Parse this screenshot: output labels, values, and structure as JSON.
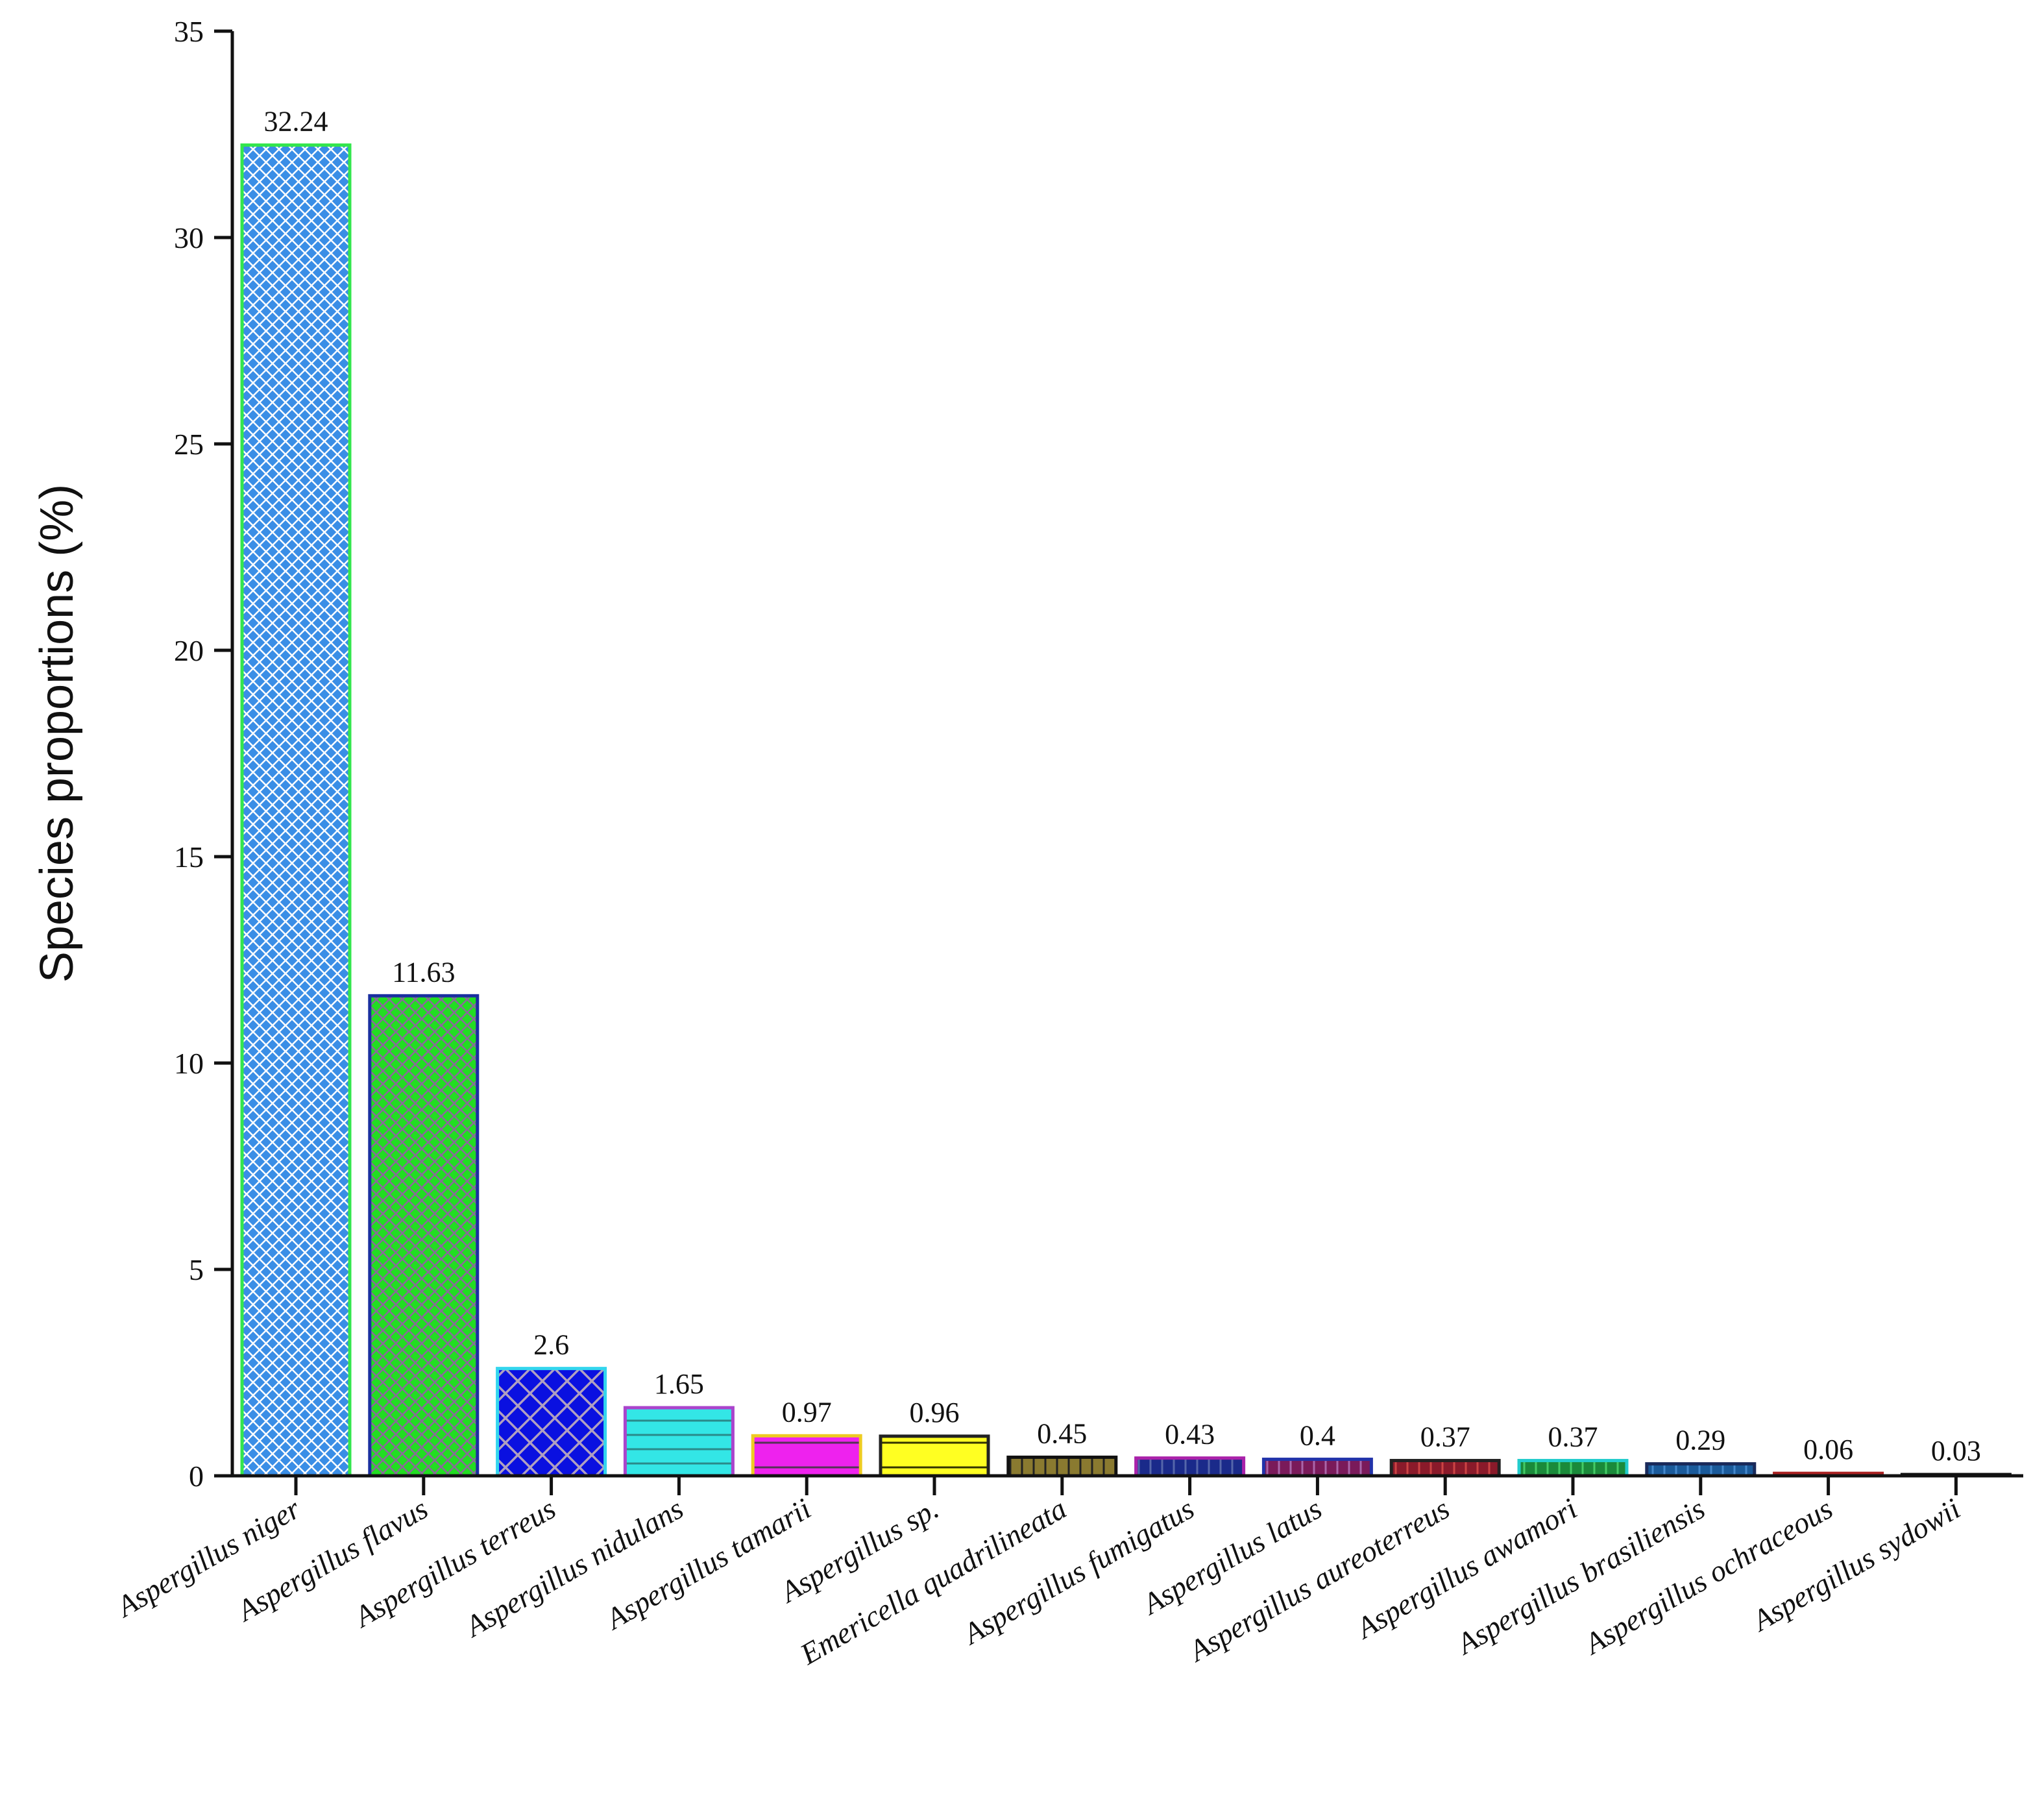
{
  "chart_data": {
    "type": "bar",
    "ylabel": "Species proportions (%)",
    "xlabel": "",
    "ylim": [
      0,
      35
    ],
    "yticks": [
      0,
      5,
      10,
      15,
      20,
      25,
      30,
      35
    ],
    "grid": false,
    "categories": [
      "Aspergillus niger",
      "Aspergillus flavus",
      "Aspergillus terreus",
      "Aspergillus nidulans",
      "Aspergillus tamarii",
      "Aspergillus sp.",
      "Emericella quadrilineata",
      "Aspergillus fumigatus",
      "Aspergillus latus",
      "Aspergillus aureoterreus",
      "Aspergillus awamori",
      "Aspergillus brasiliensis",
      "Aspergillus ochraceous",
      "Aspergillus sydowii"
    ],
    "values": [
      32.24,
      11.63,
      2.6,
      1.65,
      0.97,
      0.96,
      0.45,
      0.43,
      0.4,
      0.37,
      0.37,
      0.29,
      0.06,
      0.03
    ],
    "value_labels": [
      "32.24",
      "11.63",
      "2.6",
      "1.65",
      "0.97",
      "0.96",
      "0.45",
      "0.43",
      "0.4",
      "0.37",
      "0.37",
      "0.29",
      "0.06",
      "0.03"
    ],
    "bar_styles": [
      {
        "fill": "#3a8ee6",
        "stroke": "#33e64d",
        "pattern": "crosshatch",
        "pattern_color": "#ffffff"
      },
      {
        "fill": "#22dd22",
        "stroke": "#1a2fa0",
        "pattern": "crosshatch",
        "pattern_color": "#8a6a9a"
      },
      {
        "fill": "#0a10e0",
        "stroke": "#33d6ee",
        "pattern": "crosshatch-wide",
        "pattern_color": "#b0a0c0"
      },
      {
        "fill": "#33e6e6",
        "stroke": "#aa44cc",
        "pattern": "horizontal",
        "pattern_color": "#2a8a8a"
      },
      {
        "fill": "#ee22ee",
        "stroke": "#eecc22",
        "pattern": "horizontal-wide",
        "pattern_color": "#553355"
      },
      {
        "fill": "#ffff22",
        "stroke": "#222222",
        "pattern": "horizontal-wide",
        "pattern_color": "#333300"
      },
      {
        "fill": "#8a7a30",
        "stroke": "#111111",
        "pattern": "vertical",
        "pattern_color": "#222222"
      },
      {
        "fill": "#1a2a8a",
        "stroke": "#aa22aa",
        "pattern": "vertical",
        "pattern_color": "#5566aa"
      },
      {
        "fill": "#7a1a5a",
        "stroke": "#2233aa",
        "pattern": "vertical",
        "pattern_color": "#aa66aa"
      },
      {
        "fill": "#8a1a2a",
        "stroke": "#222222",
        "pattern": "vertical",
        "pattern_color": "#cc4444"
      },
      {
        "fill": "#1a8a3a",
        "stroke": "#22cccc",
        "pattern": "vertical",
        "pattern_color": "#44cc66"
      },
      {
        "fill": "#1a5a9a",
        "stroke": "#1a2a5a",
        "pattern": "vertical",
        "pattern_color": "#4488cc"
      },
      {
        "fill": "#ee8822",
        "stroke": "#aa2222",
        "pattern": "none",
        "pattern_color": "#ee8822"
      },
      {
        "fill": "#442266",
        "stroke": "#111111",
        "pattern": "none",
        "pattern_color": "#442266"
      }
    ]
  }
}
